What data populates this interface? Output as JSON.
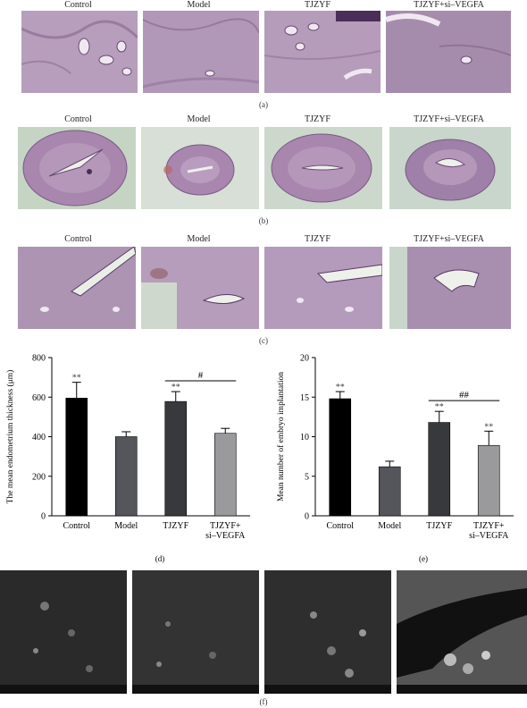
{
  "row_a": {
    "labels": [
      "Control",
      "Model",
      "TJZYF",
      "TJZYF+si–VEGFA"
    ],
    "caption": "(a)"
  },
  "row_b": {
    "labels": [
      "Control",
      "Model",
      "TJZYF",
      "TJZYF+si–VEGFA"
    ],
    "caption": "(b)"
  },
  "row_c": {
    "labels": [
      "Control",
      "Model",
      "TJZYF",
      "TJZYF+si–VEGFA"
    ],
    "caption": "(c)"
  },
  "row_f": {
    "caption": "(f)"
  },
  "chart_data": [
    {
      "type": "bar",
      "panel_caption": "(d)",
      "categories": [
        "Control",
        "Model",
        "TJZYF",
        "TJZYF+\nsi–VEGFA"
      ],
      "values": [
        595,
        400,
        578,
        417
      ],
      "errors": [
        80,
        25,
        50,
        25
      ],
      "colors": [
        "#000000",
        "#55565b",
        "#38393c",
        "#9a9a9c"
      ],
      "significance": [
        "**",
        "",
        "**",
        ""
      ],
      "bracket": {
        "from": 2,
        "to": 3,
        "label": "#"
      },
      "ylabel": "The mean endometrium thickness (μm)",
      "ylim": [
        0,
        800
      ],
      "yticks": [
        0,
        200,
        400,
        600,
        800
      ]
    },
    {
      "type": "bar",
      "panel_caption": "(e)",
      "categories": [
        "Control",
        "Model",
        "TJZYF",
        "TJZYF+\nsi–VEGFA"
      ],
      "values": [
        14.8,
        6.2,
        11.8,
        8.9
      ],
      "errors": [
        0.9,
        0.7,
        1.4,
        1.8
      ],
      "colors": [
        "#000000",
        "#55565b",
        "#38393c",
        "#9a9a9c"
      ],
      "significance": [
        "**",
        "",
        "**",
        "**"
      ],
      "bracket": {
        "from": 2,
        "to": 3,
        "label": "##"
      },
      "ylabel": "Mean number of embryo implantation",
      "ylim": [
        0,
        20
      ],
      "yticks": [
        0,
        5,
        10,
        15,
        20
      ]
    }
  ]
}
